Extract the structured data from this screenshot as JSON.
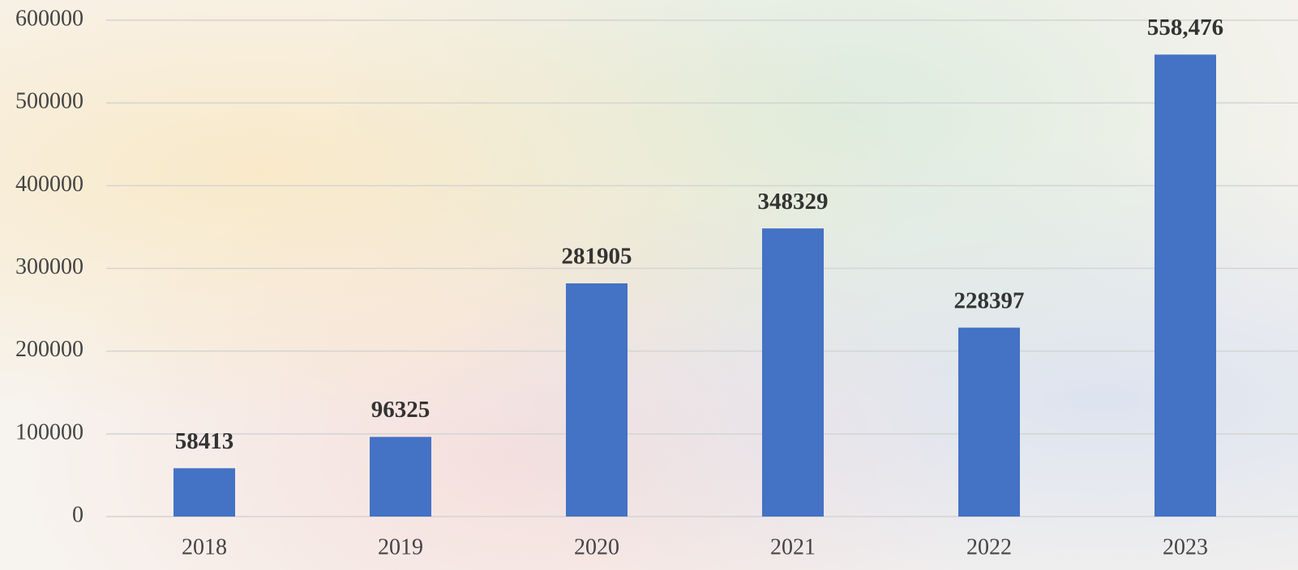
{
  "chart_data": {
    "type": "bar",
    "categories": [
      "2018",
      "2019",
      "2020",
      "2021",
      "2022",
      "2023"
    ],
    "values": [
      58413,
      96325,
      281905,
      348329,
      228397,
      558476
    ],
    "value_labels": [
      "58413",
      "96325",
      "281905",
      "348329",
      "228397",
      "558,476"
    ],
    "color": "#4472c4",
    "ylim": [
      0,
      600000
    ],
    "yticks": [
      0,
      100000,
      200000,
      300000,
      400000,
      500000,
      600000
    ],
    "grid": true
  }
}
